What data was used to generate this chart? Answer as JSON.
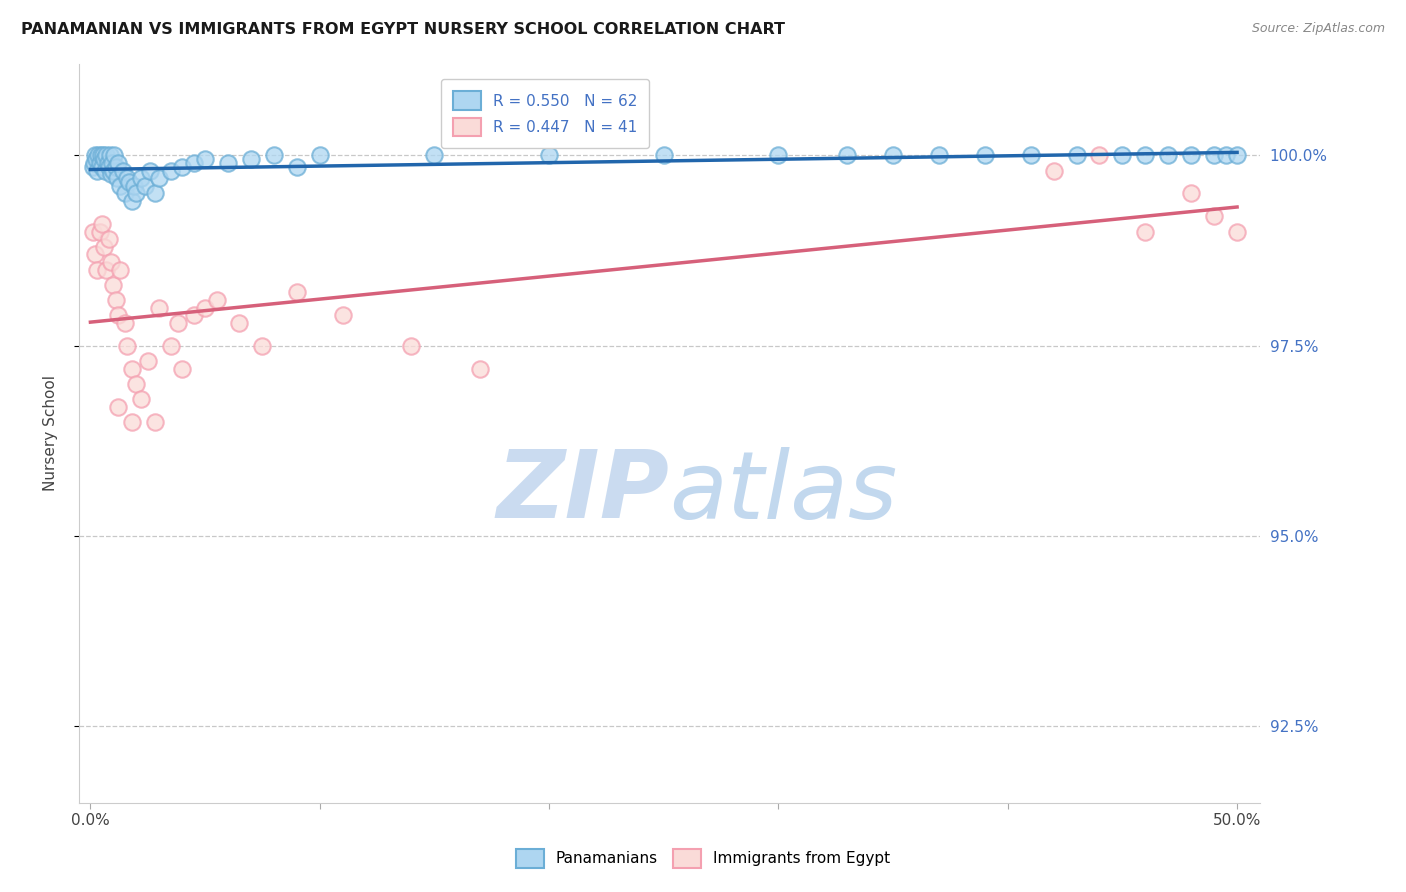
{
  "title": "PANAMANIAN VS IMMIGRANTS FROM EGYPT NURSERY SCHOOL CORRELATION CHART",
  "source": "Source: ZipAtlas.com",
  "ylabel": "Nursery School",
  "ytick_values": [
    100.0,
    97.5,
    95.0,
    92.5
  ],
  "xlim": [
    -0.5,
    51.0
  ],
  "ylim": [
    91.5,
    101.2
  ],
  "legend_r1": "R = 0.550   N = 62",
  "legend_r2": "R = 0.447   N = 41",
  "blue_color": "#6BAED6",
  "pink_color": "#F4A0B0",
  "blue_line_color": "#2166AC",
  "pink_line_color": "#D6607A",
  "blue_face": "#AED6F1",
  "pink_face": "#FADBD8",
  "watermark_zip": "ZIP",
  "watermark_atlas": "atlas",
  "background_color": "#FFFFFF",
  "grid_color": "#C8C8C8",
  "right_tick_color": "#4472C4",
  "panama_x": [
    0.1,
    0.15,
    0.2,
    0.25,
    0.3,
    0.35,
    0.4,
    0.45,
    0.5,
    0.55,
    0.6,
    0.65,
    0.7,
    0.75,
    0.8,
    0.85,
    0.9,
    0.95,
    1.0,
    1.05,
    1.1,
    1.15,
    1.2,
    1.3,
    1.4,
    1.5,
    1.6,
    1.7,
    1.8,
    1.9,
    2.0,
    2.2,
    2.4,
    2.6,
    2.8,
    3.0,
    3.5,
    4.0,
    4.5,
    5.0,
    6.0,
    7.0,
    8.0,
    9.0,
    10.0,
    15.0,
    20.0,
    25.0,
    30.0,
    33.0,
    35.0,
    37.0,
    39.0,
    41.0,
    43.0,
    45.0,
    46.0,
    47.0,
    48.0,
    49.0,
    49.5,
    50.0
  ],
  "panama_y": [
    99.85,
    99.9,
    100.0,
    99.95,
    99.8,
    100.0,
    99.9,
    100.0,
    99.85,
    100.0,
    99.95,
    99.8,
    100.0,
    99.9,
    99.85,
    100.0,
    99.75,
    99.9,
    99.8,
    100.0,
    99.85,
    99.7,
    99.9,
    99.6,
    99.8,
    99.5,
    99.7,
    99.65,
    99.4,
    99.6,
    99.5,
    99.7,
    99.6,
    99.8,
    99.5,
    99.7,
    99.8,
    99.85,
    99.9,
    99.95,
    99.9,
    99.95,
    100.0,
    99.85,
    100.0,
    100.0,
    100.0,
    100.0,
    100.0,
    100.0,
    100.0,
    100.0,
    100.0,
    100.0,
    100.0,
    100.0,
    100.0,
    100.0,
    100.0,
    100.0,
    100.0,
    100.0
  ],
  "egypt_x": [
    0.1,
    0.2,
    0.3,
    0.4,
    0.5,
    0.6,
    0.7,
    0.8,
    0.9,
    1.0,
    1.1,
    1.2,
    1.3,
    1.5,
    1.6,
    1.8,
    2.0,
    2.5,
    3.0,
    3.5,
    3.8,
    4.5,
    5.0,
    5.5,
    6.5,
    7.5,
    9.0,
    11.0,
    14.0,
    17.0,
    42.0,
    44.0,
    46.0,
    48.0,
    49.0,
    50.0,
    1.2,
    1.8,
    2.2,
    2.8,
    4.0
  ],
  "egypt_y": [
    99.0,
    98.7,
    98.5,
    99.0,
    99.1,
    98.8,
    98.5,
    98.9,
    98.6,
    98.3,
    98.1,
    97.9,
    98.5,
    97.8,
    97.5,
    97.2,
    97.0,
    97.3,
    98.0,
    97.5,
    97.8,
    97.9,
    98.0,
    98.1,
    97.8,
    97.5,
    98.2,
    97.9,
    97.5,
    97.2,
    99.8,
    100.0,
    99.0,
    99.5,
    99.2,
    99.0,
    96.7,
    96.5,
    96.8,
    96.5,
    97.2
  ]
}
